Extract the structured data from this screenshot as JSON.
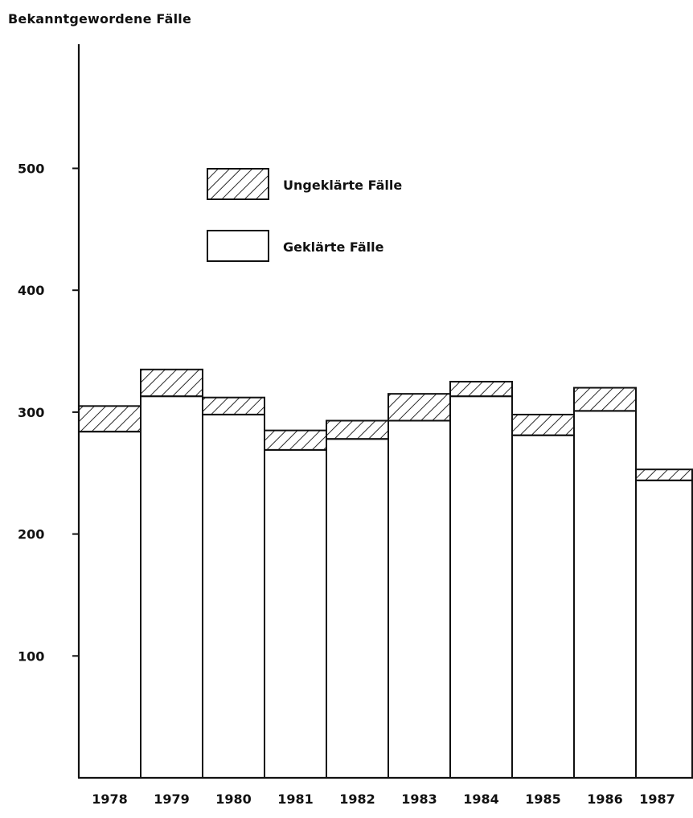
{
  "chart_data": {
    "type": "bar",
    "stacked": true,
    "ylabel": "Bekanntgewordene Fälle",
    "xlabel": "",
    "title": "",
    "categories": [
      "1978",
      "1979",
      "1980",
      "1981",
      "1982",
      "1983",
      "1984",
      "1985",
      "1986",
      "1987"
    ],
    "series": [
      {
        "name": "Geklärte Fälle",
        "pattern": "none",
        "values": [
          284,
          313,
          298,
          269,
          278,
          293,
          313,
          281,
          301,
          244
        ]
      },
      {
        "name": "Ungeklärte Fälle",
        "pattern": "hatched",
        "values": [
          21,
          22,
          14,
          16,
          15,
          22,
          12,
          17,
          19,
          9
        ]
      }
    ],
    "yticks": [
      100,
      200,
      300,
      400,
      500
    ],
    "ylim": [
      0,
      570
    ],
    "legend_position": "top-center",
    "grid": false
  }
}
